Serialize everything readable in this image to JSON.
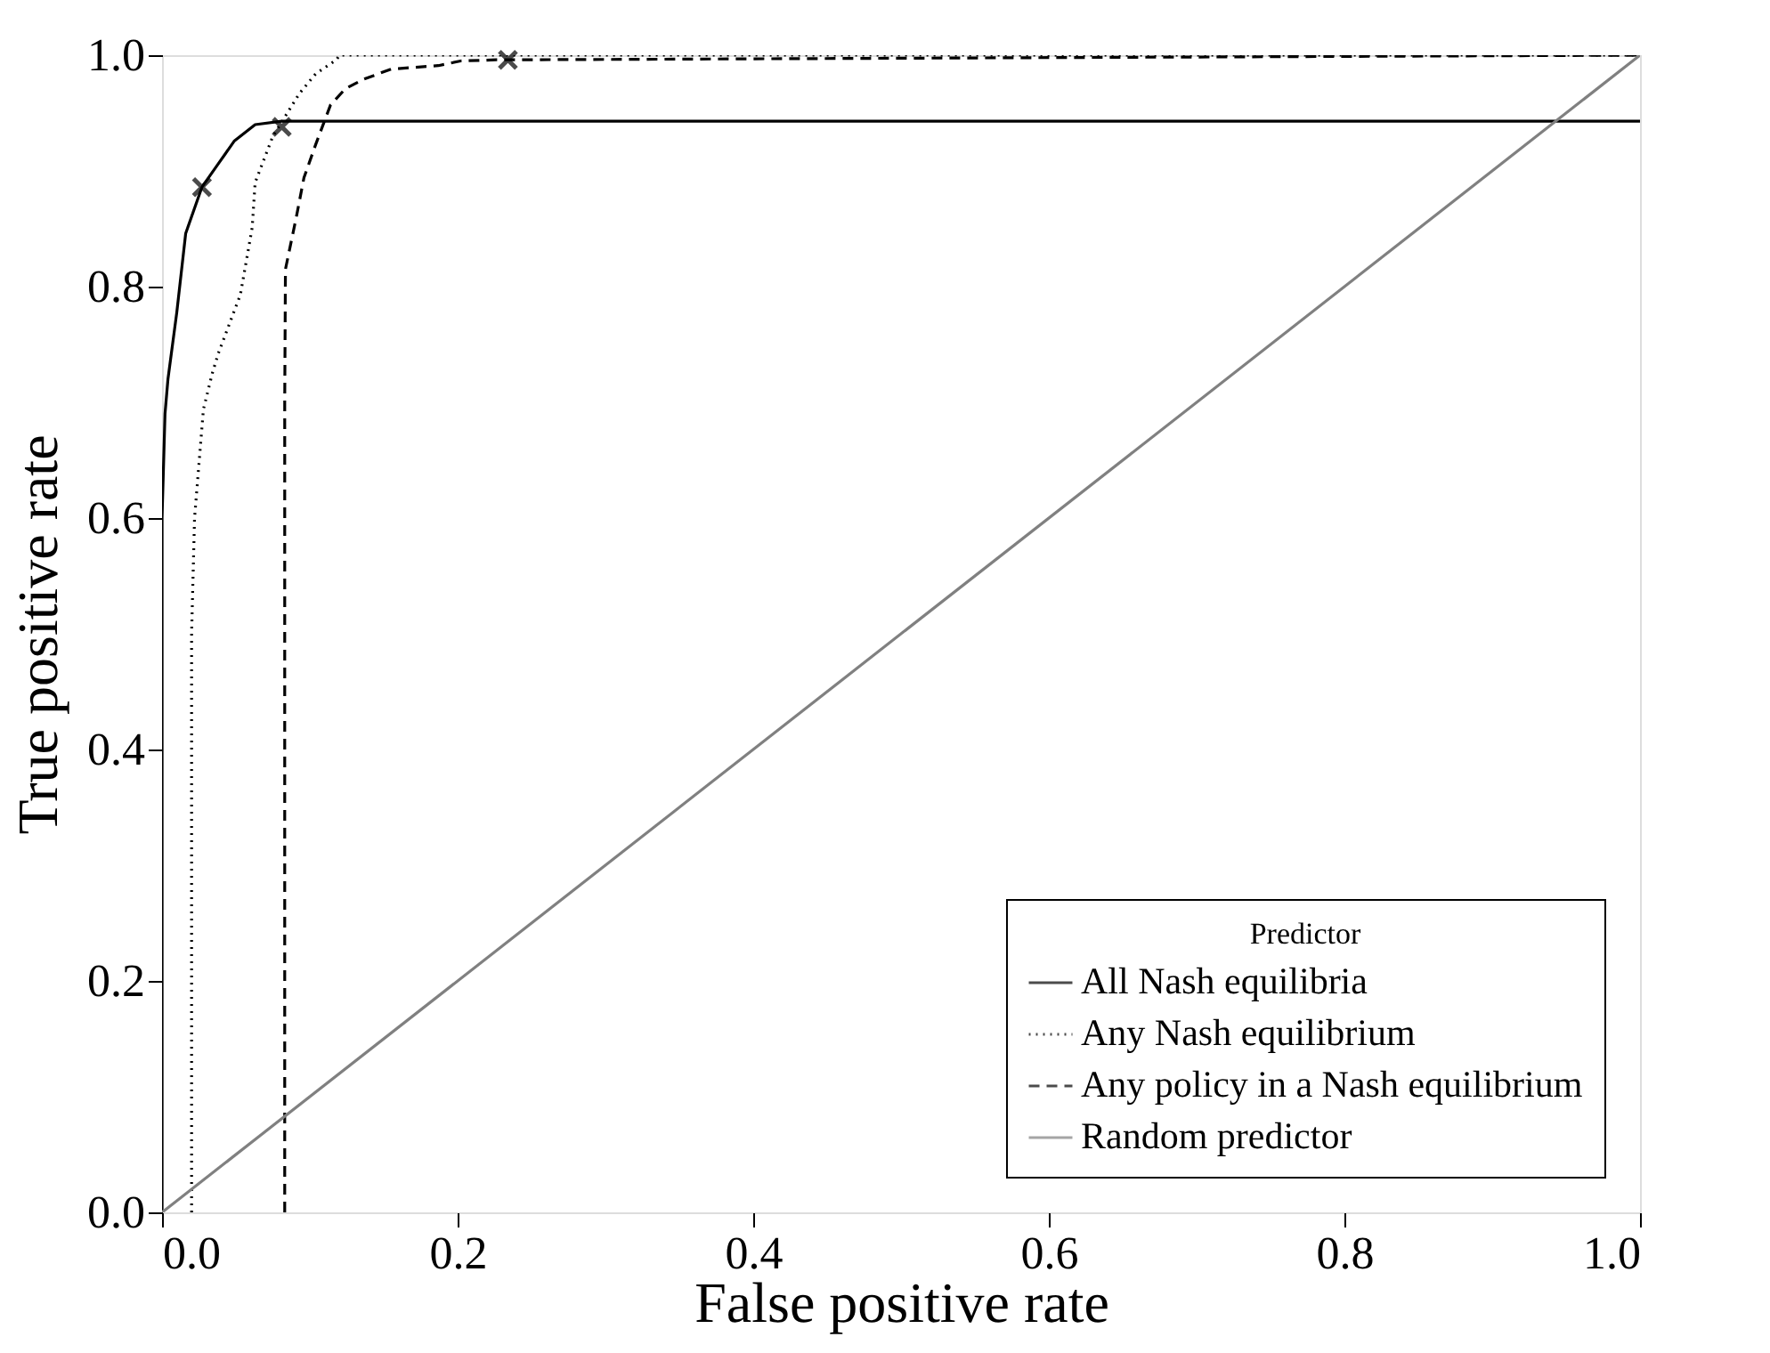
{
  "chart_data": {
    "type": "line",
    "xlabel": "False positive rate",
    "ylabel": "True positive rate",
    "legend_title": "Predictor",
    "legend": "bottom right",
    "grid": false,
    "xlim": [
      0,
      1
    ],
    "ylim": [
      0,
      1
    ],
    "xticks": [
      {
        "value": 0,
        "label": "0.0"
      },
      {
        "value": 0.2,
        "label": "0.2"
      },
      {
        "value": 0.4,
        "label": "0.4"
      },
      {
        "value": 0.6,
        "label": "0.6"
      },
      {
        "value": 0.8,
        "label": "0.8"
      },
      {
        "value": 1,
        "label": "1.0"
      }
    ],
    "yticks": [
      {
        "value": 0,
        "label": "0.0"
      },
      {
        "value": 0.2,
        "label": "0.2"
      },
      {
        "value": 0.4,
        "label": "0.4"
      },
      {
        "value": 0.6,
        "label": "0.6"
      },
      {
        "value": 0.8,
        "label": "0.8"
      },
      {
        "value": 1,
        "label": "1.0"
      }
    ],
    "series": [
      {
        "name": "All Nash equilibria",
        "color": "#000000",
        "line_style": "solid",
        "marker": "none",
        "x": [
          0,
          0,
          0.002,
          0.004,
          0.01,
          0.016,
          0.027,
          0.038,
          0.049,
          0.063,
          0.081,
          1
        ],
        "values": [
          0,
          0.6,
          0.69,
          0.72,
          0.778,
          0.846,
          0.886,
          0.906,
          0.926,
          0.94,
          0.943,
          0.943
        ]
      },
      {
        "name": "Any Nash equilibrium",
        "color": "#000000",
        "line_style": "dotted",
        "marker": "none",
        "x": [
          0.02,
          0.02,
          0.022,
          0.028,
          0.034,
          0.038,
          0.053,
          0.061,
          0.063,
          0.075,
          0.093,
          0.104,
          0.118,
          0.12,
          1
        ],
        "values": [
          0,
          0.5,
          0.6,
          0.694,
          0.725,
          0.742,
          0.793,
          0.851,
          0.89,
          0.93,
          0.967,
          0.984,
          0.996,
          1,
          1
        ]
      },
      {
        "name": "Any policy in a Nash equilibrium",
        "color": "#000000",
        "line_style": "dashed",
        "marker": "none",
        "x": [
          0.083,
          0.083,
          0.0835,
          0.091,
          0.096,
          0.104,
          0.114,
          0.124,
          0.136,
          0.155,
          0.187,
          0.202,
          0.226,
          0.234,
          1
        ],
        "values": [
          0,
          0.7,
          0.815,
          0.861,
          0.894,
          0.923,
          0.957,
          0.971,
          0.979,
          0.988,
          0.991,
          0.995,
          0.996,
          0.996,
          1
        ]
      },
      {
        "name": "Random predictor",
        "color": "#808080",
        "line_style": "solid",
        "marker": "none",
        "x": [
          0,
          1
        ],
        "values": [
          0,
          1
        ]
      },
      {
        "type": "scatter",
        "color": "#000000",
        "marker": "cross",
        "x": [
          0.027,
          0.081,
          0.234
        ],
        "values": [
          0.886,
          0.938,
          0.996
        ]
      }
    ]
  }
}
